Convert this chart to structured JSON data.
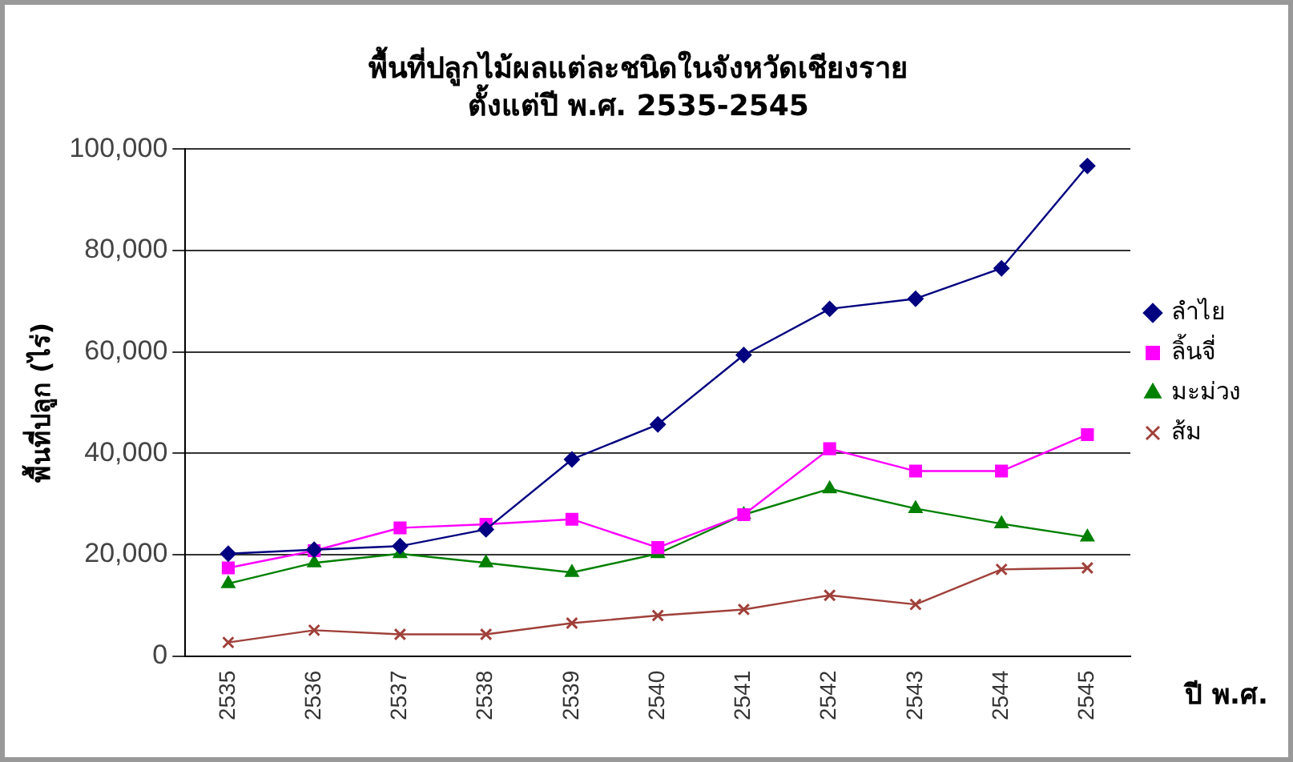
{
  "chart_data": {
    "type": "line",
    "title": "พื้นที่ปลูกไม้ผลแต่ละชนิดในจังหวัดเชียงราย",
    "subtitle": "ตั้งแต่ปี พ.ศ. 2535-2545",
    "xlabel": "ปี พ.ศ.",
    "ylabel": "พื้นที่ปลูก (ไร่)",
    "categories": [
      "2535",
      "2536",
      "2537",
      "2538",
      "2539",
      "2540",
      "2541",
      "2542",
      "2543",
      "2544",
      "2545"
    ],
    "series": [
      {
        "name": "ลำไย",
        "color": "#000080",
        "marker": "diamond",
        "values": [
          20200,
          21000,
          21700,
          25000,
          38800,
          45700,
          59400,
          68500,
          70500,
          76500,
          96700
        ]
      },
      {
        "name": "ลิ้นจี่",
        "color": "#ff00ff",
        "marker": "square",
        "values": [
          17400,
          20800,
          25300,
          26000,
          27000,
          21400,
          27900,
          40900,
          36500,
          36500,
          43700
        ]
      },
      {
        "name": "มะม่วง",
        "color": "#008000",
        "marker": "triangle",
        "values": [
          14300,
          18400,
          20200,
          18400,
          16500,
          20200,
          27900,
          33000,
          29100,
          26100,
          23500
        ]
      },
      {
        "name": "ส้ม",
        "color": "#a0403a",
        "marker": "cross",
        "values": [
          2700,
          5100,
          4300,
          4300,
          6500,
          8000,
          9200,
          12000,
          10200,
          17100,
          17400
        ]
      }
    ],
    "ylim": [
      0,
      100000
    ],
    "yticks": [
      {
        "value": 0,
        "label": "0"
      },
      {
        "value": 20000,
        "label": "20,000"
      },
      {
        "value": 40000,
        "label": "40,000"
      },
      {
        "value": 60000,
        "label": "60,000"
      },
      {
        "value": 80000,
        "label": "80,000"
      },
      {
        "value": 100000,
        "label": "100,000"
      }
    ],
    "grid": "y",
    "legend": "right",
    "line_style": "solid"
  }
}
